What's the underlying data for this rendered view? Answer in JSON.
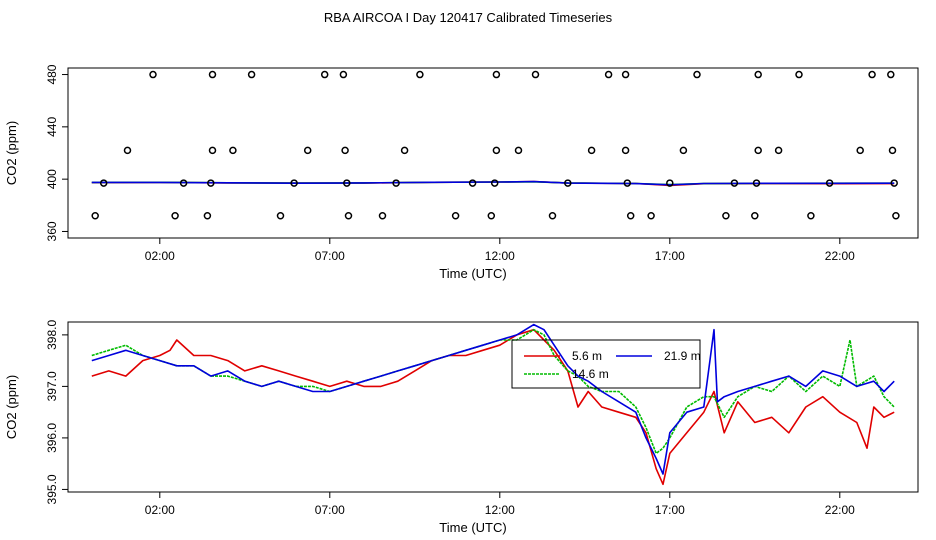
{
  "title": "RBA AIRCOA I  Day 120417  Calibrated Timeseries",
  "colors": {
    "red": "#e00000",
    "green": "#00bb00",
    "blue": "#0000dd",
    "axis": "#000000"
  },
  "chart_data": [
    {
      "type": "scatter",
      "xlabel": "Time (UTC)",
      "ylabel": "CO2 (ppm)",
      "xlim": [
        -0.7,
        24.3
      ],
      "ylim": [
        355,
        485
      ],
      "x_ticks": [
        2,
        7,
        12,
        17,
        22
      ],
      "x_tick_labels": [
        "02:00",
        "07:00",
        "12:00",
        "17:00",
        "22:00"
      ],
      "y_ticks": [
        360,
        400,
        440,
        480
      ],
      "y_tick_labels": [
        "360",
        "400",
        "440",
        "480"
      ],
      "grid": false,
      "points": [
        [
          1.8,
          480
        ],
        [
          3.55,
          480
        ],
        [
          4.7,
          480
        ],
        [
          6.85,
          480
        ],
        [
          7.4,
          480
        ],
        [
          9.65,
          480
        ],
        [
          11.9,
          480
        ],
        [
          13.05,
          480
        ],
        [
          15.2,
          480
        ],
        [
          15.7,
          480
        ],
        [
          17.8,
          480
        ],
        [
          19.6,
          480
        ],
        [
          20.8,
          480
        ],
        [
          22.95,
          480
        ],
        [
          23.5,
          480
        ],
        [
          1.05,
          422
        ],
        [
          3.55,
          422
        ],
        [
          4.15,
          422
        ],
        [
          6.35,
          422
        ],
        [
          7.45,
          422
        ],
        [
          9.2,
          422
        ],
        [
          11.9,
          422
        ],
        [
          12.55,
          422
        ],
        [
          14.7,
          422
        ],
        [
          15.7,
          422
        ],
        [
          17.4,
          422
        ],
        [
          19.6,
          422
        ],
        [
          20.2,
          422
        ],
        [
          22.6,
          422
        ],
        [
          23.55,
          422
        ],
        [
          0.35,
          397
        ],
        [
          2.7,
          397
        ],
        [
          3.5,
          397
        ],
        [
          5.95,
          397
        ],
        [
          7.5,
          397
        ],
        [
          8.95,
          397
        ],
        [
          11.2,
          397
        ],
        [
          11.85,
          397
        ],
        [
          14.0,
          397
        ],
        [
          15.75,
          397
        ],
        [
          17.0,
          397
        ],
        [
          18.9,
          397
        ],
        [
          19.55,
          397
        ],
        [
          21.7,
          397
        ],
        [
          23.6,
          397
        ],
        [
          0.1,
          372
        ],
        [
          2.45,
          372
        ],
        [
          3.4,
          372
        ],
        [
          5.55,
          372
        ],
        [
          7.55,
          372
        ],
        [
          8.55,
          372
        ],
        [
          10.7,
          372
        ],
        [
          11.75,
          372
        ],
        [
          13.55,
          372
        ],
        [
          15.85,
          372
        ],
        [
          16.45,
          372
        ],
        [
          18.65,
          372
        ],
        [
          19.5,
          372
        ],
        [
          21.15,
          372
        ],
        [
          23.65,
          372
        ]
      ],
      "series": [
        {
          "name": "5.6 m",
          "color": "#e00000",
          "x": [
            0.0,
            2.0,
            4.0,
            6.0,
            8.0,
            10.0,
            12.0,
            13.0,
            14.0,
            16.0,
            17.0,
            18.0,
            20.0,
            22.0,
            23.6
          ],
          "values": [
            397.3,
            397.5,
            397.1,
            397.0,
            397.0,
            397.6,
            397.8,
            398.1,
            397.0,
            396.7,
            395.2,
            396.5,
            396.6,
            396.5,
            396.6
          ]
        },
        {
          "name": "14.6 m",
          "color": "#00bb00",
          "x": [
            0.0,
            2.0,
            4.0,
            6.0,
            8.0,
            10.0,
            12.0,
            13.0,
            14.0,
            16.0,
            17.0,
            18.0,
            20.0,
            22.0,
            23.6
          ],
          "values": [
            397.5,
            397.6,
            397.2,
            397.0,
            397.1,
            397.6,
            397.8,
            398.0,
            397.1,
            396.7,
            395.8,
            396.6,
            396.8,
            396.9,
            396.9
          ]
        },
        {
          "name": "21.9 m",
          "color": "#0000dd",
          "x": [
            0.0,
            2.0,
            4.0,
            6.0,
            8.0,
            10.0,
            12.0,
            13.0,
            14.0,
            16.0,
            17.0,
            18.0,
            20.0,
            22.0,
            23.6
          ],
          "values": [
            397.5,
            397.5,
            397.2,
            396.9,
            397.1,
            397.6,
            397.8,
            398.1,
            397.0,
            396.6,
            395.7,
            396.7,
            396.8,
            396.8,
            396.9
          ]
        }
      ]
    },
    {
      "type": "line",
      "xlabel": "Time (UTC)",
      "ylabel": "CO2 (ppm)",
      "xlim": [
        -0.7,
        24.3
      ],
      "ylim": [
        394.95,
        398.25
      ],
      "x_ticks": [
        2,
        7,
        12,
        17,
        22
      ],
      "x_tick_labels": [
        "02:00",
        "07:00",
        "12:00",
        "17:00",
        "22:00"
      ],
      "y_ticks": [
        395,
        396,
        397,
        398
      ],
      "y_tick_labels": [
        "395.0",
        "396.0",
        "397.0",
        "398.0"
      ],
      "grid": false,
      "legend": {
        "position": "top-center-right",
        "entries": [
          {
            "name": "5.6 m",
            "color": "#e00000",
            "dash": "solid"
          },
          {
            "name": "21.9 m",
            "color": "#0000dd",
            "dash": "solid"
          },
          {
            "name": "14.6 m",
            "color": "#00bb00",
            "dash": "dotted"
          }
        ]
      },
      "series": [
        {
          "name": "5.6 m",
          "color": "#e00000",
          "dash": "solid",
          "x": [
            0.0,
            0.5,
            1.0,
            1.5,
            2.0,
            2.3,
            2.5,
            3.0,
            3.5,
            4.0,
            4.5,
            5.0,
            5.5,
            6.0,
            6.5,
            7.0,
            7.5,
            8.0,
            8.5,
            9.0,
            9.5,
            10.0,
            10.5,
            11.0,
            11.5,
            12.0,
            12.5,
            13.0,
            13.3,
            13.6,
            14.0,
            14.3,
            14.6,
            15.0,
            15.5,
            16.0,
            16.3,
            16.6,
            16.8,
            17.0,
            17.5,
            18.0,
            18.3,
            18.6,
            19.0,
            19.5,
            20.0,
            20.5,
            21.0,
            21.5,
            22.0,
            22.5,
            22.8,
            23.0,
            23.3,
            23.6
          ],
          "values": [
            397.2,
            397.3,
            397.2,
            397.5,
            397.6,
            397.7,
            397.9,
            397.6,
            397.6,
            397.5,
            397.3,
            397.4,
            397.3,
            397.2,
            397.1,
            397.0,
            397.1,
            397.0,
            397.0,
            397.1,
            397.3,
            397.5,
            397.6,
            397.6,
            397.7,
            397.8,
            398.0,
            398.1,
            397.9,
            397.7,
            397.3,
            396.6,
            396.9,
            396.6,
            396.5,
            396.4,
            396.1,
            395.4,
            395.1,
            395.7,
            396.1,
            396.5,
            396.9,
            396.1,
            396.7,
            396.3,
            396.4,
            396.1,
            396.6,
            396.8,
            396.5,
            396.3,
            395.8,
            396.6,
            396.4,
            396.5
          ]
        },
        {
          "name": "14.6 m",
          "color": "#00bb00",
          "dash": "dotted",
          "x": [
            0.0,
            0.5,
            1.0,
            1.5,
            2.0,
            2.5,
            3.0,
            3.5,
            4.0,
            4.5,
            5.0,
            5.5,
            6.0,
            6.5,
            7.0,
            7.5,
            8.0,
            8.5,
            9.0,
            9.5,
            10.0,
            10.5,
            11.0,
            11.5,
            12.0,
            12.5,
            13.0,
            13.3,
            13.6,
            14.0,
            14.3,
            14.6,
            15.0,
            15.5,
            16.0,
            16.3,
            16.6,
            16.8,
            17.0,
            17.5,
            18.0,
            18.3,
            18.6,
            19.0,
            19.5,
            20.0,
            20.5,
            21.0,
            21.5,
            22.0,
            22.3,
            22.5,
            23.0,
            23.3,
            23.6
          ],
          "values": [
            397.6,
            397.7,
            397.8,
            397.6,
            397.5,
            397.4,
            397.4,
            397.2,
            397.2,
            397.1,
            397.0,
            397.1,
            397.0,
            397.0,
            396.9,
            397.0,
            397.1,
            397.2,
            397.3,
            397.4,
            397.5,
            397.6,
            397.7,
            397.8,
            397.9,
            397.9,
            398.1,
            398.0,
            397.6,
            397.3,
            397.2,
            397.0,
            396.9,
            396.9,
            396.6,
            396.2,
            395.7,
            395.8,
            396.0,
            396.6,
            396.8,
            396.8,
            396.4,
            396.8,
            397.0,
            396.9,
            397.2,
            396.9,
            397.2,
            397.0,
            397.9,
            397.0,
            397.2,
            396.8,
            396.6
          ]
        },
        {
          "name": "21.9 m",
          "color": "#0000dd",
          "dash": "solid",
          "x": [
            0.0,
            0.5,
            1.0,
            1.5,
            2.0,
            2.5,
            3.0,
            3.5,
            4.0,
            4.5,
            5.0,
            5.5,
            6.0,
            6.5,
            7.0,
            7.5,
            8.0,
            8.5,
            9.0,
            9.5,
            10.0,
            10.5,
            11.0,
            11.5,
            12.0,
            12.5,
            13.0,
            13.3,
            13.6,
            14.0,
            14.3,
            14.6,
            15.0,
            15.5,
            16.0,
            16.3,
            16.6,
            16.8,
            17.0,
            17.5,
            18.0,
            18.3,
            18.4,
            18.6,
            19.0,
            19.5,
            20.0,
            20.5,
            21.0,
            21.5,
            22.0,
            22.5,
            23.0,
            23.3,
            23.6
          ],
          "values": [
            397.5,
            397.6,
            397.7,
            397.6,
            397.5,
            397.4,
            397.4,
            397.2,
            397.3,
            397.1,
            397.0,
            397.1,
            397.0,
            396.9,
            396.9,
            397.0,
            397.1,
            397.2,
            397.3,
            397.4,
            397.5,
            397.6,
            397.7,
            397.8,
            397.9,
            398.0,
            398.2,
            398.1,
            397.8,
            397.4,
            397.2,
            397.1,
            396.9,
            396.7,
            396.5,
            396.0,
            395.6,
            395.3,
            396.1,
            396.5,
            396.6,
            398.1,
            396.7,
            396.8,
            396.9,
            397.0,
            397.1,
            397.2,
            397.0,
            397.3,
            397.2,
            397.0,
            397.1,
            396.9,
            397.1
          ]
        }
      ]
    }
  ]
}
